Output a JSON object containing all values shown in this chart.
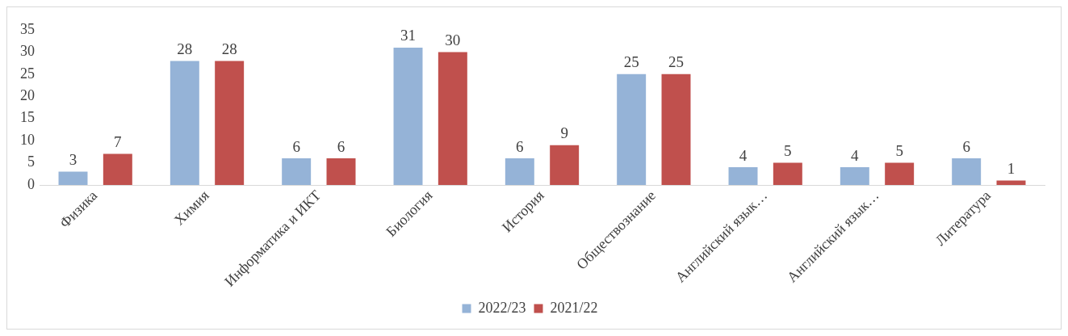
{
  "chart_data": {
    "type": "bar",
    "categories": [
      "Физика",
      "Химия",
      "Информатика и ИКТ",
      "Биология",
      "История",
      "Обществознание",
      "Английский язык…",
      "Английский язык…",
      "Литература"
    ],
    "series": [
      {
        "name": "2022/23",
        "color": "#95b3d7",
        "values": [
          3,
          28,
          6,
          31,
          6,
          25,
          4,
          4,
          6
        ]
      },
      {
        "name": "2021/22",
        "color": "#c0504d",
        "values": [
          7,
          28,
          6,
          30,
          9,
          25,
          5,
          5,
          1
        ]
      }
    ],
    "ylim": [
      0,
      35
    ],
    "yticks": [
      0,
      5,
      10,
      15,
      20,
      25,
      30,
      35
    ],
    "grid": false,
    "legend": "bottom",
    "data_labels": true
  }
}
